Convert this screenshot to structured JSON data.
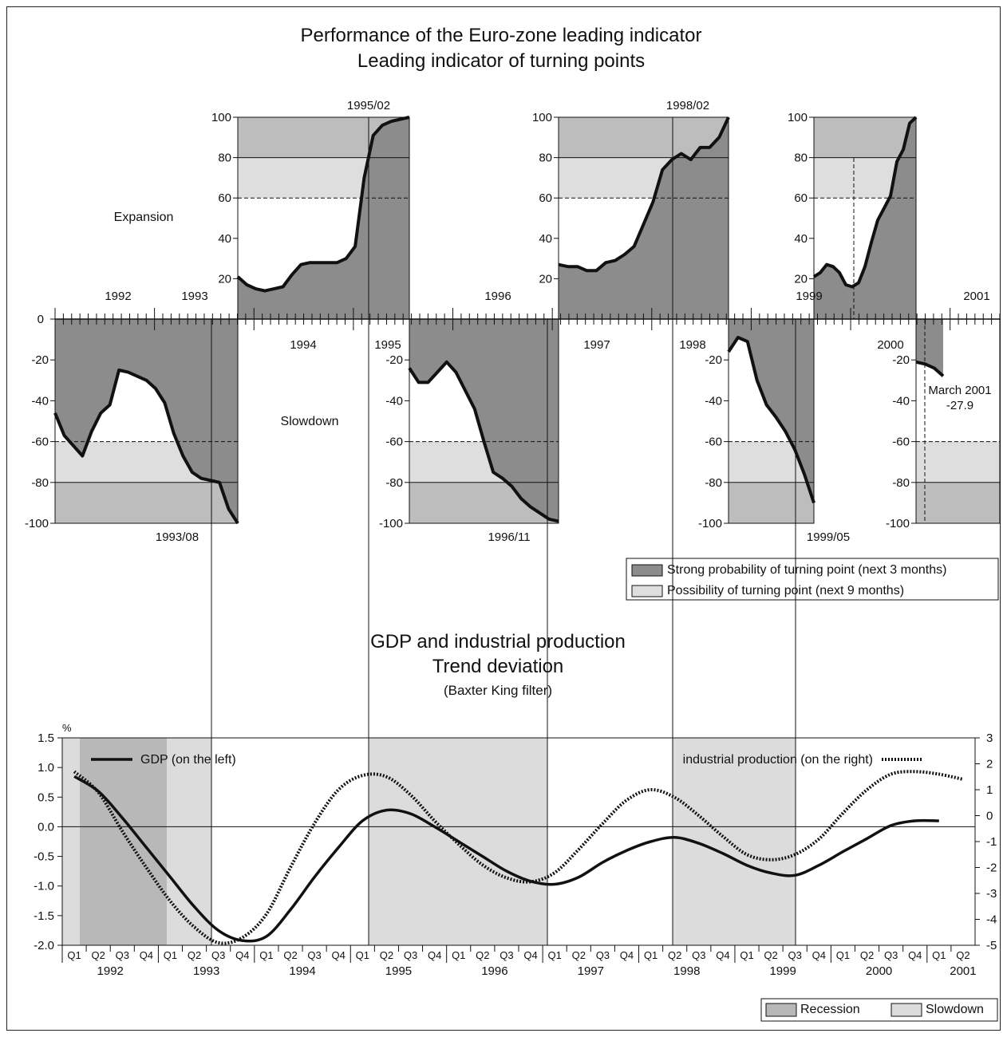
{
  "colors": {
    "strong": "#8c8c8c",
    "possible": "#dedede",
    "slow_band": "#bdbdbd",
    "recession": "#b8b8b8",
    "slowdown": "#dcdcdc",
    "line": "#111111"
  },
  "top": {
    "title1": "Performance of the Euro-zone leading indicator",
    "title2": "Leading indicator of turning points",
    "expansion_label": "Expansion",
    "slowdown_label": "Slowdown",
    "y_ticks": [
      "100",
      "80",
      "60",
      "40",
      "20"
    ],
    "y_ticks_neg": [
      "0",
      "-20",
      "-40",
      "-60",
      "-80",
      "-100"
    ],
    "years_above": [
      "1992",
      "1993",
      "1996",
      "1999",
      "2001"
    ],
    "years_below": [
      "1994",
      "1995",
      "1997",
      "1998",
      "2000"
    ],
    "turning_points": [
      "1993/08",
      "1995/02",
      "1996/11",
      "1998/02",
      "1999/05"
    ],
    "annotation": {
      "label": "March 2001",
      "value": "-27.9"
    },
    "legend": [
      {
        "label": "Strong probability of turning point (next 3 months)"
      },
      {
        "label": "Possibility of turning point (next 9 months)"
      }
    ]
  },
  "bottom": {
    "title1": "GDP and industrial production",
    "title2": "Trend deviation",
    "title3": "(Baxter King filter)",
    "ylabel_left": "%",
    "left_ticks": [
      "1.5",
      "1.0",
      "0.5",
      "0.0",
      "-0.5",
      "-1.0",
      "-1.5",
      "-2.0"
    ],
    "right_ticks": [
      "3",
      "2",
      "1",
      "0",
      "-1",
      "-2",
      "-3",
      "-4",
      "-5"
    ],
    "quarters": [
      "Q1",
      "Q2",
      "Q3",
      "Q4"
    ],
    "years": [
      "1992",
      "1993",
      "1994",
      "1995",
      "1996",
      "1997",
      "1998",
      "1999",
      "2000",
      "2001"
    ],
    "gdp_label": "GDP (on the left)",
    "ip_label": "industrial production (on the right)",
    "legend": [
      {
        "label": "Recession"
      },
      {
        "label": "Slowdown"
      }
    ]
  },
  "chart_data": [
    {
      "type": "area",
      "title": "Performance of the Euro-zone leading indicator",
      "subtitle": "Leading indicator of turning points",
      "ylim": [
        -100,
        100
      ],
      "segments": [
        {
          "phase": "Slowdown",
          "end": "1993/08",
          "values": [
            -46,
            -57,
            -62,
            -67,
            -55,
            -46,
            -42,
            -25,
            -26,
            -28,
            -30,
            -34,
            -41,
            -56,
            -67,
            -75,
            -78,
            -79,
            -80,
            -93,
            -100
          ]
        },
        {
          "phase": "Expansion",
          "end": "1995/02",
          "values": [
            21,
            17,
            15,
            14,
            15,
            16,
            22,
            27,
            28,
            28,
            28,
            28,
            30,
            36,
            70,
            91,
            96,
            98,
            99,
            100
          ]
        },
        {
          "phase": "Slowdown",
          "end": "1996/11",
          "values": [
            -24,
            -31,
            -31,
            -26,
            -21,
            -26,
            -35,
            -44,
            -60,
            -75,
            -78,
            -82,
            -88,
            -92,
            -95,
            -98,
            -99
          ]
        },
        {
          "phase": "Expansion",
          "end": "1998/02",
          "values": [
            27,
            26,
            26,
            24,
            24,
            28,
            29,
            32,
            36,
            47,
            58,
            74,
            79,
            82,
            79,
            85,
            85,
            90,
            100
          ]
        },
        {
          "phase": "Slowdown",
          "end": "1999/05",
          "values": [
            -16,
            -9,
            -11,
            -30,
            -42,
            -48,
            -55,
            -64,
            -76,
            -90
          ]
        },
        {
          "phase": "Expansion",
          "end": "2000",
          "values": [
            21,
            23,
            27,
            26,
            23,
            17,
            16,
            18,
            26,
            38,
            49,
            55,
            61,
            78,
            84,
            97,
            100
          ]
        },
        {
          "phase": "Slowdown",
          "end": "March 2001",
          "values": [
            -21,
            -22,
            -24,
            -27.9
          ]
        }
      ]
    },
    {
      "type": "line",
      "title": "GDP and industrial production",
      "subtitle": "Trend deviation",
      "x_start": "1992 Q1",
      "ylim": [
        -2.0,
        1.5
      ],
      "y2lim": [
        -5,
        3
      ],
      "series": [
        {
          "name": "GDP (on the left)",
          "axis": "left",
          "values": [
            0.85,
            0.6,
            0.15,
            -0.35,
            -0.85,
            -1.35,
            -1.75,
            -1.92,
            -1.85,
            -1.4,
            -0.85,
            -0.35,
            0.1,
            0.28,
            0.22,
            0.0,
            -0.25,
            -0.5,
            -0.75,
            -0.92,
            -0.97,
            -0.85,
            -0.6,
            -0.4,
            -0.25,
            -0.18,
            -0.28,
            -0.45,
            -0.65,
            -0.78,
            -0.82,
            -0.65,
            -0.42,
            -0.2,
            0.02,
            0.1,
            0.1
          ]
        },
        {
          "name": "industrial production (on the right)",
          "axis": "right",
          "values": [
            1.7,
            0.9,
            -0.6,
            -2.0,
            -3.3,
            -4.3,
            -4.9,
            -4.7,
            -3.8,
            -2.0,
            -0.3,
            1.0,
            1.55,
            1.5,
            0.8,
            -0.2,
            -1.1,
            -1.9,
            -2.4,
            -2.55,
            -2.2,
            -1.3,
            -0.3,
            0.6,
            1.0,
            0.7,
            0.0,
            -0.8,
            -1.5,
            -1.7,
            -1.5,
            -0.9,
            0.1,
            1.0,
            1.6,
            1.7,
            1.6,
            1.4
          ]
        }
      ]
    }
  ]
}
